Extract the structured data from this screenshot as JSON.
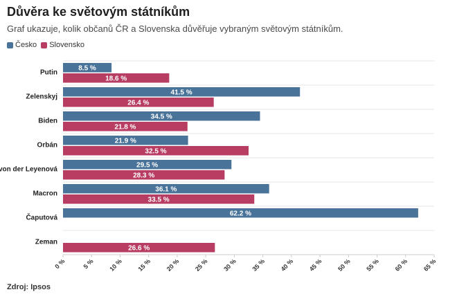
{
  "chart_data": {
    "type": "bar",
    "orientation": "horizontal",
    "title": "Důvěra ke světovým státníkům",
    "subtitle": "Graf ukazuje, kolik občanů ČR a Slovenska důvěřuje vybraným světovým státníkům.",
    "categories": [
      "Putin",
      "Zelenskyj",
      "Biden",
      "Orbán",
      "von der Leyenová",
      "Macron",
      "Čaputová",
      "Zeman"
    ],
    "series": [
      {
        "name": "Česko",
        "color": "#4a7399",
        "values": [
          8.5,
          41.5,
          34.5,
          21.9,
          29.5,
          36.1,
          62.2,
          null
        ]
      },
      {
        "name": "Slovensko",
        "color": "#b83d62",
        "values": [
          18.6,
          26.4,
          21.8,
          32.5,
          28.3,
          33.5,
          null,
          26.6
        ]
      }
    ],
    "xlim": [
      0,
      65
    ],
    "xticks": [
      0,
      5,
      10,
      15,
      20,
      25,
      30,
      35,
      40,
      45,
      50,
      55,
      60,
      65
    ],
    "tick_suffix": " %",
    "value_suffix": " %",
    "legend_position": "top-left",
    "grid": true
  },
  "source": "Zdroj: Ipsos"
}
